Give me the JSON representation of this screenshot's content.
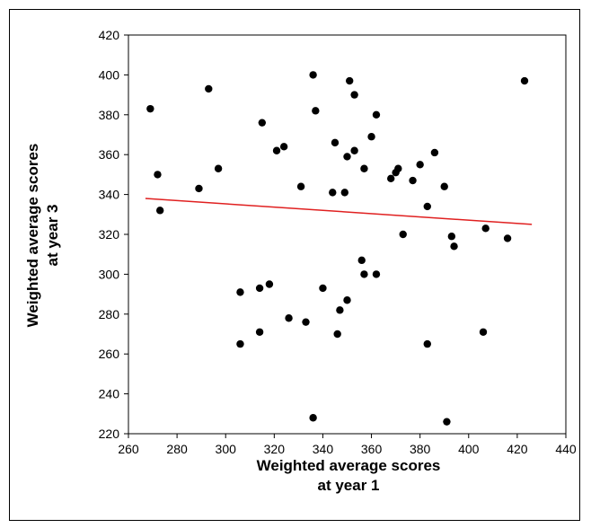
{
  "chart_data": {
    "type": "scatter",
    "xlabel": [
      "Weighted average scores",
      "at year 1"
    ],
    "ylabel": [
      "Weighted average scores",
      "at year 3"
    ],
    "xlim": [
      260,
      440
    ],
    "ylim": [
      220,
      420
    ],
    "xticks": [
      260,
      280,
      300,
      320,
      340,
      360,
      380,
      400,
      420,
      440
    ],
    "yticks": [
      220,
      240,
      260,
      280,
      300,
      320,
      340,
      360,
      380,
      400,
      420
    ],
    "grid": false,
    "point_color": "#000000",
    "trendline": {
      "color": "#e02020",
      "x": [
        267,
        426
      ],
      "y": [
        338,
        325
      ]
    },
    "points": [
      {
        "x": 269,
        "y": 383
      },
      {
        "x": 272,
        "y": 350
      },
      {
        "x": 273,
        "y": 332
      },
      {
        "x": 289,
        "y": 343
      },
      {
        "x": 293,
        "y": 393
      },
      {
        "x": 297,
        "y": 353
      },
      {
        "x": 306,
        "y": 265
      },
      {
        "x": 306,
        "y": 291
      },
      {
        "x": 314,
        "y": 293
      },
      {
        "x": 314,
        "y": 271
      },
      {
        "x": 315,
        "y": 376
      },
      {
        "x": 318,
        "y": 295
      },
      {
        "x": 321,
        "y": 362
      },
      {
        "x": 324,
        "y": 364
      },
      {
        "x": 326,
        "y": 278
      },
      {
        "x": 331,
        "y": 344
      },
      {
        "x": 333,
        "y": 276
      },
      {
        "x": 336,
        "y": 400
      },
      {
        "x": 336,
        "y": 228
      },
      {
        "x": 337,
        "y": 382
      },
      {
        "x": 340,
        "y": 293
      },
      {
        "x": 344,
        "y": 341
      },
      {
        "x": 345,
        "y": 366
      },
      {
        "x": 346,
        "y": 270
      },
      {
        "x": 347,
        "y": 282
      },
      {
        "x": 349,
        "y": 341
      },
      {
        "x": 350,
        "y": 359
      },
      {
        "x": 350,
        "y": 287
      },
      {
        "x": 351,
        "y": 397
      },
      {
        "x": 353,
        "y": 390
      },
      {
        "x": 353,
        "y": 362
      },
      {
        "x": 356,
        "y": 307
      },
      {
        "x": 357,
        "y": 353
      },
      {
        "x": 357,
        "y": 300
      },
      {
        "x": 360,
        "y": 369
      },
      {
        "x": 362,
        "y": 380
      },
      {
        "x": 362,
        "y": 300
      },
      {
        "x": 368,
        "y": 348
      },
      {
        "x": 370,
        "y": 351
      },
      {
        "x": 371,
        "y": 353
      },
      {
        "x": 373,
        "y": 320
      },
      {
        "x": 377,
        "y": 347
      },
      {
        "x": 380,
        "y": 355
      },
      {
        "x": 383,
        "y": 334
      },
      {
        "x": 383,
        "y": 265
      },
      {
        "x": 386,
        "y": 361
      },
      {
        "x": 390,
        "y": 344
      },
      {
        "x": 391,
        "y": 226
      },
      {
        "x": 393,
        "y": 319
      },
      {
        "x": 394,
        "y": 314
      },
      {
        "x": 406,
        "y": 271
      },
      {
        "x": 407,
        "y": 323
      },
      {
        "x": 416,
        "y": 318
      },
      {
        "x": 423,
        "y": 397
      }
    ]
  }
}
